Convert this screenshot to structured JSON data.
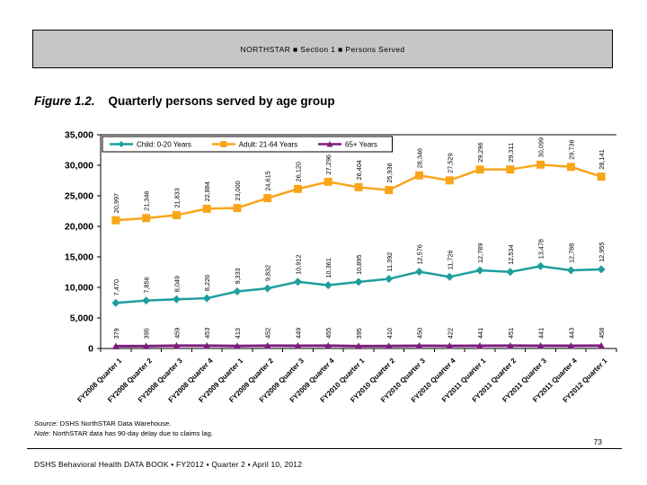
{
  "header": {
    "text": "NORTHSTAR  ■  Section 1  ■  Persons Served"
  },
  "figure": {
    "label": "Figure 1.2.",
    "title": "Quarterly persons served by age group"
  },
  "chart_data": {
    "type": "line",
    "title": "Quarterly persons served by age group",
    "xlabel": "",
    "ylabel": "",
    "ylim": [
      0,
      35000
    ],
    "ytick_step": 5000,
    "grid": false,
    "legend_position": "top-left-inside",
    "categories": [
      "FY2008 Quarter 1",
      "FY2008 Quarter 2",
      "FY2008 Quarter 3",
      "FY2008 Quarter 4",
      "FY2009 Quarter 1",
      "FY2009 Quarter 2",
      "FY2009 Quarter 3",
      "FY2009 Quarter 4",
      "FY2010 Quarter 1",
      "FY2010 Quarter 2",
      "FY2010 Quarter 3",
      "FY2010 Quarter 4",
      "FY2011 Quarter 1",
      "FY2011 Quarter 2",
      "FY2011 Quarter 3",
      "FY2011 Quarter 4",
      "FY2012 Quarter 1"
    ],
    "series": [
      {
        "name": "Child: 0-20 Years",
        "color": "#1f9e9e",
        "marker": "diamond",
        "line_width": 2.5,
        "marker_size": 4.5,
        "values": [
          7470,
          7856,
          8049,
          8226,
          9333,
          9832,
          10912,
          10361,
          10895,
          11392,
          12576,
          11726,
          12789,
          12534,
          13478,
          12788,
          12955
        ]
      },
      {
        "name": "Adult: 21-64 Years",
        "color": "#f9a51a",
        "marker": "square",
        "line_width": 2.5,
        "marker_size": 4.5,
        "values": [
          20997,
          21346,
          21833,
          22884,
          23000,
          24615,
          26120,
          27296,
          26404,
          25936,
          28346,
          27529,
          29296,
          29311,
          30099,
          29736,
          28141
        ]
      },
      {
        "name": "65+ Years",
        "color": "#7c1e7c",
        "marker": "triangle",
        "line_width": 3,
        "marker_size": 4,
        "values": [
          379,
          395,
          459,
          453,
          413,
          452,
          449,
          455,
          395,
          410,
          450,
          422,
          441,
          451,
          441,
          443,
          458
        ]
      }
    ]
  },
  "source": {
    "label": "Source:",
    "text": " DSHS NorthSTAR Data Warehouse."
  },
  "note": {
    "label": "Note:",
    "text": " NorthSTAR data has 90-day delay due to claims lag."
  },
  "page": {
    "number": "73"
  },
  "footer": {
    "text": "DSHS Behavioral Health DATA BOOK   ▪   FY2012   ▪   Quarter 2   ▪   April 10, 2012"
  }
}
